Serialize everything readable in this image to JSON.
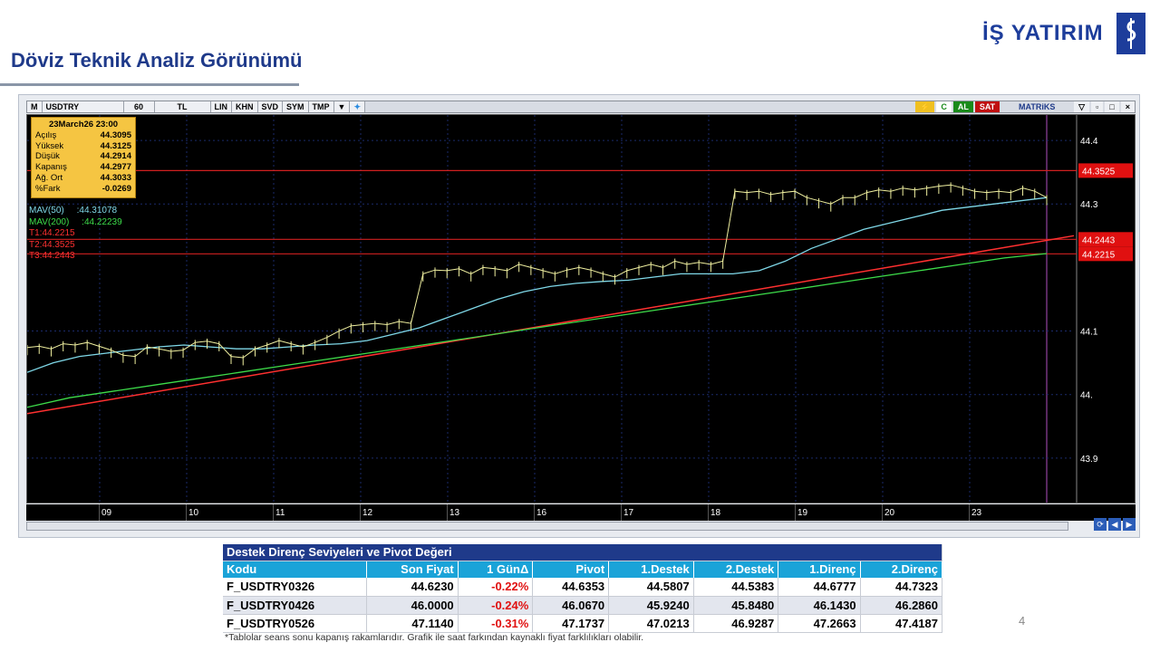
{
  "page": {
    "title": "Döviz Teknik Analiz Görünümü",
    "logo_text": "İŞ YATIRIM",
    "page_number": "4",
    "note": "*Tablolar seans sonu kapanış rakamlarıdır. Grafik ile saat farkından kaynaklı fiyat farklılıkları olabilir."
  },
  "toolbar": {
    "m": "M",
    "symbol": "USDTRY",
    "period": "60",
    "currency": "TL",
    "scale": "LIN",
    "khn": "KHN",
    "svd": "SVD",
    "sym": "SYM",
    "tmp": "TMP",
    "al": "AL",
    "sat": "SAT",
    "brand": "MATRiKS"
  },
  "infobox": {
    "date": "23March26 23:00",
    "rows": [
      {
        "label": "Açılış",
        "value": "44.3095"
      },
      {
        "label": "Yüksek",
        "value": "44.3125"
      },
      {
        "label": "Düşük",
        "value": "44.2914"
      },
      {
        "label": "Kapanış",
        "value": "44.2977"
      },
      {
        "label": "Ağ. Ort",
        "value": "44.3033"
      },
      {
        "label": "%Fark",
        "value": "-0.0269"
      }
    ]
  },
  "legend": {
    "mav50": "MAV(50)     :44.31078",
    "mav200": "MAV(200)     :44.22239",
    "t1": "T1:44.2215",
    "t2": "T2:44.3525",
    "t3": "T3:44.2443"
  },
  "colors": {
    "mav50": "#7fd8e8",
    "mav200": "#3ddc4a",
    "trend": "#ff3030",
    "price": "#f0f0a0",
    "hline": "#d02020"
  },
  "chart_data": {
    "type": "line",
    "title": "USDTRY",
    "xlabel": "",
    "ylabel": "",
    "x_tick_labels": [
      "09",
      "10",
      "11",
      "12",
      "13",
      "16",
      "17",
      "18",
      "19",
      "20",
      "23"
    ],
    "y_tick_labels": [
      "44.4",
      "44.3",
      "44.1",
      "44.",
      "43.9"
    ],
    "y_ticks": [
      44.4,
      44.3,
      44.1,
      44.0,
      43.9
    ],
    "ylim": [
      43.83,
      44.44
    ],
    "horizontal_levels": [
      {
        "label": "44.3525",
        "value": 44.3525
      },
      {
        "label": "44.2443",
        "value": 44.2443
      },
      {
        "label": "44.2215",
        "value": 44.2215
      }
    ],
    "series": [
      {
        "name": "USDTRY",
        "values": [
          44.074,
          44.076,
          44.072,
          44.08,
          44.078,
          44.082,
          44.076,
          44.07,
          44.062,
          44.06,
          44.075,
          44.072,
          44.068,
          44.07,
          44.082,
          44.084,
          44.08,
          44.06,
          44.058,
          44.072,
          44.078,
          44.085,
          44.08,
          44.075,
          44.082,
          44.09,
          44.1,
          44.108,
          44.11,
          44.112,
          44.11,
          44.115,
          44.112,
          44.19,
          44.196,
          44.195,
          44.198,
          44.19,
          44.2,
          44.198,
          44.195,
          44.205,
          44.2,
          44.195,
          44.19,
          44.196,
          44.2,
          44.196,
          44.19,
          44.185,
          44.195,
          44.2,
          44.205,
          44.2,
          44.21,
          44.205,
          44.208,
          44.205,
          44.21,
          44.32,
          44.318,
          44.32,
          44.315,
          44.318,
          44.32,
          44.31,
          44.305,
          44.3,
          44.31,
          44.31,
          44.318,
          44.322,
          44.32,
          44.325,
          44.322,
          44.325,
          44.328,
          44.33,
          44.325,
          44.32,
          44.318,
          44.32,
          44.318,
          44.325,
          44.32,
          44.31
        ]
      },
      {
        "name": "MAV(50)",
        "values": [
          44.035,
          44.05,
          44.06,
          44.065,
          44.07,
          44.075,
          44.078,
          44.075,
          44.072,
          44.072,
          44.075,
          44.078,
          44.08,
          44.085,
          44.095,
          44.105,
          44.12,
          44.135,
          44.15,
          44.162,
          44.17,
          44.175,
          44.178,
          44.18,
          44.185,
          44.19,
          44.19,
          44.19,
          44.195,
          44.21,
          44.23,
          44.245,
          44.26,
          44.27,
          44.28,
          44.29,
          44.295,
          44.3,
          44.305,
          44.31
        ]
      },
      {
        "name": "MAV(200)",
        "values": [
          43.98,
          43.995,
          44.005,
          44.015,
          44.025,
          44.035,
          44.045,
          44.055,
          44.065,
          44.075,
          44.085,
          44.095,
          44.105,
          44.115,
          44.125,
          44.135,
          44.145,
          44.155,
          44.165,
          44.175,
          44.185,
          44.195,
          44.205,
          44.215,
          44.222
        ]
      }
    ]
  },
  "table": {
    "title": "Destek Direnç Seviyeleri ve Pivot Değeri",
    "headers": [
      "Kodu",
      "Son Fiyat",
      "1 GünΔ",
      "Pivot",
      "1.Destek",
      "2.Destek",
      "1.Direnç",
      "2.Direnç"
    ],
    "rows": [
      [
        "F_USDTRY0326",
        "44.6230",
        "-0.22%",
        "44.6353",
        "44.5807",
        "44.5383",
        "44.6777",
        "44.7323"
      ],
      [
        "F_USDTRY0426",
        "46.0000",
        "-0.24%",
        "46.0670",
        "45.9240",
        "45.8480",
        "46.1430",
        "46.2860"
      ],
      [
        "F_USDTRY0526",
        "47.1140",
        "-0.31%",
        "47.1737",
        "47.0213",
        "46.9287",
        "47.2663",
        "47.4187"
      ]
    ]
  }
}
